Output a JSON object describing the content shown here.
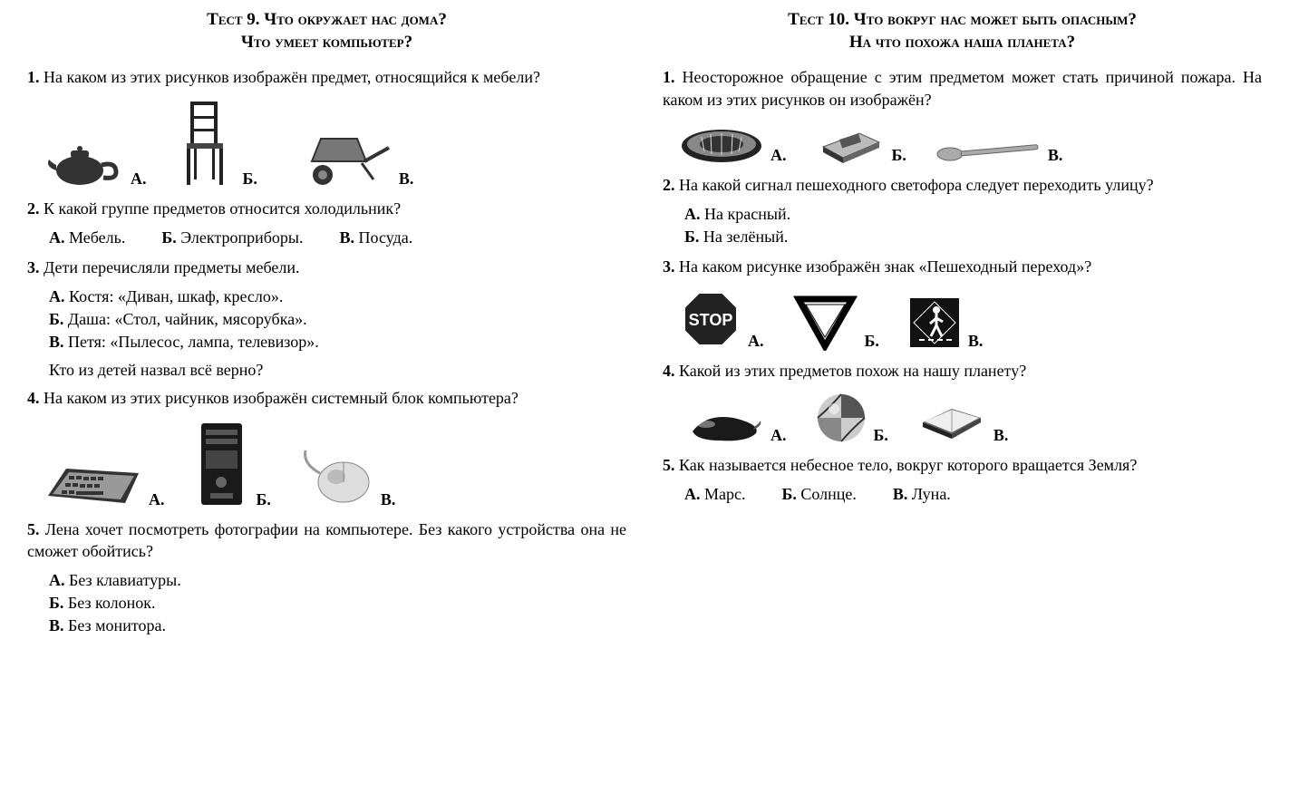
{
  "left": {
    "title_l1": "Тест 9. Что окружает нас дома?",
    "title_l2": "Что умеет компьютер?",
    "q1": {
      "num": "1.",
      "text": "На каком из этих рисунков изображён предмет, относящийся к мебели?",
      "a": "А.",
      "b": "Б.",
      "c": "В.",
      "icons": [
        "teapot",
        "chair",
        "wheelbarrow"
      ]
    },
    "q2": {
      "num": "2.",
      "text": "К какой группе предметов относится холодильник?",
      "a": "А. Мебель.",
      "b": "Б. Электроприборы.",
      "c": "В. Посуда."
    },
    "q3": {
      "num": "3.",
      "text": "Дети перечисляли предметы мебели.",
      "a": "А. Костя: «Диван, шкаф, кресло».",
      "b": "Б. Даша: «Стол, чайник, мясорубка».",
      "c": "В. Петя: «Пылесос, лампа, телевизор».",
      "tail": "Кто из детей назвал всё верно?"
    },
    "q4": {
      "num": "4.",
      "text": "На каком из этих рисунков изображён системный блок компьютера?",
      "a": "А.",
      "b": "Б.",
      "c": "В.",
      "icons": [
        "keyboard",
        "pc-tower",
        "mouse"
      ]
    },
    "q5": {
      "num": "5.",
      "text": "Лена хочет посмотреть фотографии на компьютере. Без какого устройства она не сможет обойтись?",
      "a": "А. Без клавиатуры.",
      "b": "Б. Без колонок.",
      "c": "В. Без монитора."
    }
  },
  "right": {
    "title_l1": "Тест 10. Что вокруг нас может быть опасным?",
    "title_l2": "На что похожа наша планета?",
    "q1": {
      "num": "1.",
      "text": "Неосторожное обращение с этим предметом может стать причиной пожара. На каком из этих рисунков он изображён?",
      "a": "А.",
      "b": "Б.",
      "c": "В.",
      "icons": [
        "plate",
        "matchbox",
        "spoon"
      ]
    },
    "q2": {
      "num": "2.",
      "text": "На какой сигнал пешеходного светофора следует переходить улицу?",
      "a": "А. На красный.",
      "b": "Б. На зелёный."
    },
    "q3": {
      "num": "3.",
      "text": "На каком рисунке изображён знак «Пешеходный переход»?",
      "a": "А.",
      "b": "Б.",
      "c": "В.",
      "icons": [
        "stop-sign",
        "yield-sign",
        "pedestrian-sign"
      ]
    },
    "q4": {
      "num": "4.",
      "text": "Какой из этих предметов похож на нашу планету?",
      "a": "А.",
      "b": "Б.",
      "c": "В.",
      "icons": [
        "eggplant",
        "ball",
        "book"
      ]
    },
    "q5": {
      "num": "5.",
      "text": "Как называется небесное тело, вокруг которого вращается Земля?",
      "a": "А. Марс.",
      "b": "Б. Солнце.",
      "c": "В. Луна."
    }
  },
  "style": {
    "bg": "#ffffff",
    "fg": "#000000",
    "icon_gray": "#555555",
    "icon_dark": "#222222",
    "icon_light": "#cccccc"
  }
}
